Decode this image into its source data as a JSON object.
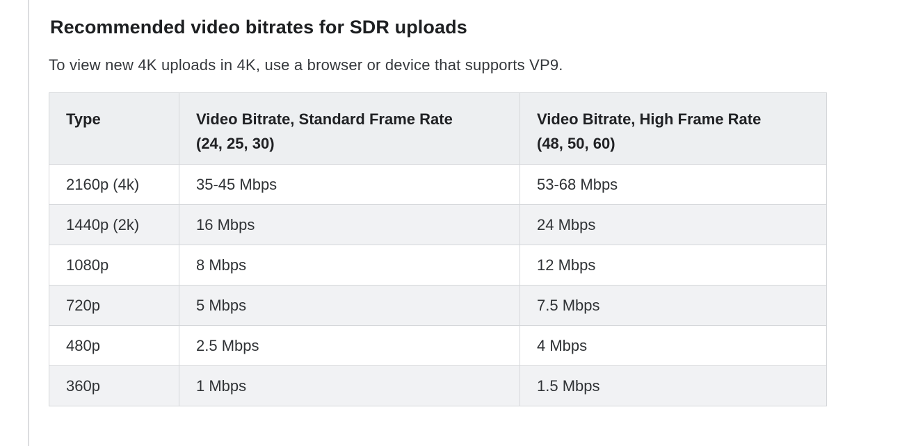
{
  "page": {
    "title": "Recommended video bitrates for SDR uploads",
    "intro": "To view new 4K uploads in 4K, use a browser or device that supports VP9."
  },
  "colors": {
    "table_header_bg": "#edeff1",
    "table_stripe_bg": "#f1f2f4",
    "table_border": "#d5d7da",
    "left_divider": "#dcdde0",
    "heading_text": "#1d1f21",
    "body_text": "#35383c"
  },
  "table": {
    "columns": [
      {
        "title": "Type",
        "sub": ""
      },
      {
        "title": "Video Bitrate, Standard Frame Rate",
        "sub": "(24, 25, 30)"
      },
      {
        "title": "Video Bitrate, High Frame Rate",
        "sub": "(48, 50, 60)"
      }
    ],
    "rows": [
      {
        "type": "2160p (4k)",
        "standard_frame_rate": "35-45 Mbps",
        "high_frame_rate": "53-68 Mbps"
      },
      {
        "type": "1440p (2k)",
        "standard_frame_rate": "16 Mbps",
        "high_frame_rate": "24 Mbps"
      },
      {
        "type": "1080p",
        "standard_frame_rate": "8 Mbps",
        "high_frame_rate": "12 Mbps"
      },
      {
        "type": "720p",
        "standard_frame_rate": "5 Mbps",
        "high_frame_rate": "7.5 Mbps"
      },
      {
        "type": "480p",
        "standard_frame_rate": "2.5 Mbps",
        "high_frame_rate": "4 Mbps"
      },
      {
        "type": "360p",
        "standard_frame_rate": "1 Mbps",
        "high_frame_rate": "1.5 Mbps"
      }
    ]
  }
}
